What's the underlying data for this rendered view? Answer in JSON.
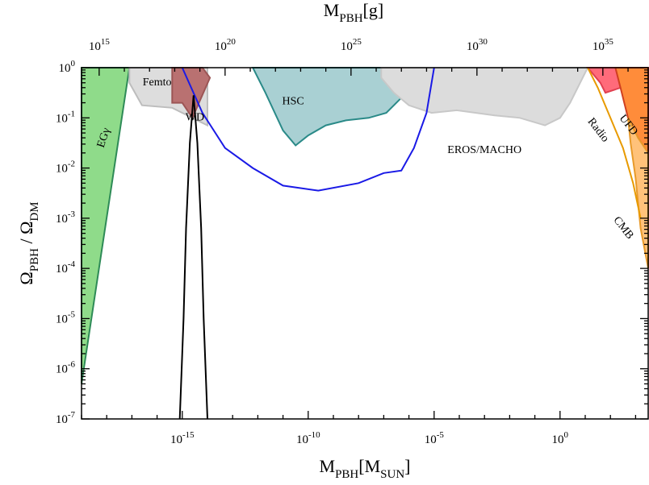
{
  "chart_data": {
    "type": "area",
    "title": "",
    "x_axis": {
      "label_main": "M",
      "label_sub": "PBH",
      "label_unit_open": "[M",
      "label_unit_sub": "SUN",
      "label_unit_close": "]",
      "scale": "log",
      "range_log10": [
        -19,
        3.5
      ],
      "ticks": [
        {
          "log10": -15,
          "base": "10",
          "exp": "-15"
        },
        {
          "log10": -10,
          "base": "10",
          "exp": "-10"
        },
        {
          "log10": -5,
          "base": "10",
          "exp": "-5"
        },
        {
          "log10": 0,
          "base": "10",
          "exp": "0"
        }
      ]
    },
    "x2_axis": {
      "label_main": "M",
      "label_sub": "PBH",
      "label_unit": "[g]",
      "scale": "log",
      "ticks": [
        {
          "log10": 15,
          "base": "10",
          "exp": "15"
        },
        {
          "log10": 20,
          "base": "10",
          "exp": "20"
        },
        {
          "log10": 25,
          "base": "10",
          "exp": "25"
        },
        {
          "log10": 30,
          "base": "10",
          "exp": "30"
        },
        {
          "log10": 35,
          "base": "10",
          "exp": "35"
        }
      ]
    },
    "y_axis": {
      "label_main": "Ω",
      "label_sub": "PBH",
      "label_sep": " / Ω",
      "label_sub2": "DM",
      "scale": "log",
      "range_log10": [
        -7,
        0
      ],
      "ticks": [
        {
          "log10": 0,
          "base": "10",
          "exp": "0"
        },
        {
          "log10": -1,
          "base": "10",
          "exp": "-1"
        },
        {
          "log10": -2,
          "base": "10",
          "exp": "-2"
        },
        {
          "log10": -3,
          "base": "10",
          "exp": "-3"
        },
        {
          "log10": -4,
          "base": "10",
          "exp": "-4"
        },
        {
          "log10": -5,
          "base": "10",
          "exp": "-5"
        },
        {
          "log10": -6,
          "base": "10",
          "exp": "-6"
        },
        {
          "log10": -7,
          "base": "10",
          "exp": "-7"
        }
      ]
    },
    "regions": [
      {
        "name": "EGγ",
        "fill": "#8fdb8a",
        "stroke": "#2e8b57",
        "points_log10": [
          [
            -19,
            0
          ],
          [
            -17.1,
            0
          ],
          [
            -19,
            -6.3
          ]
        ]
      },
      {
        "name": "Femto",
        "fill": "#dddddd",
        "stroke": "#bdbdbd",
        "points_log10": [
          [
            -17.1,
            0
          ],
          [
            -14,
            0
          ],
          [
            -14,
            -1.15
          ],
          [
            -15.4,
            -0.8
          ],
          [
            -16.6,
            -0.75
          ],
          [
            -17.1,
            -0.3
          ]
        ]
      },
      {
        "name": "WD",
        "fill": "#b97171",
        "stroke": "#9c5555",
        "points_log10": [
          [
            -15.4,
            0
          ],
          [
            -14.2,
            0
          ],
          [
            -13.9,
            -0.2
          ],
          [
            -14.6,
            -1.0
          ],
          [
            -15.0,
            -0.7
          ],
          [
            -15.4,
            -0.7
          ]
        ]
      },
      {
        "name": "HSC",
        "fill": "#a9d0d3",
        "stroke": "#2a8a88",
        "points_log10": [
          [
            -12.2,
            0
          ],
          [
            -6.0,
            0
          ],
          [
            -6.3,
            -0.6
          ],
          [
            -6.9,
            -0.9
          ],
          [
            -7.6,
            -1.0
          ],
          [
            -8.5,
            -1.05
          ],
          [
            -9.3,
            -1.15
          ],
          [
            -10.0,
            -1.35
          ],
          [
            -10.5,
            -1.55
          ],
          [
            -11.0,
            -1.25
          ],
          [
            -11.7,
            -0.5
          ]
        ]
      },
      {
        "name": "EROS/MACHO",
        "fill": "#dcdcdc",
        "stroke": "#c8c8c8",
        "points_log10": [
          [
            -7.1,
            0
          ],
          [
            1.1,
            0
          ],
          [
            0.4,
            -0.7
          ],
          [
            0,
            -1.0
          ],
          [
            -0.6,
            -1.15
          ],
          [
            -1.6,
            -1.0
          ],
          [
            -2.6,
            -0.95
          ],
          [
            -4.1,
            -0.85
          ],
          [
            -5.1,
            -0.9
          ],
          [
            -6.0,
            -0.75
          ],
          [
            -6.6,
            -0.5
          ],
          [
            -7.1,
            -0.2
          ]
        ]
      },
      {
        "name": "Radio",
        "fill": "#ff6b7a",
        "stroke": "#e04050",
        "points_log10": [
          [
            1.1,
            0
          ],
          [
            2.2,
            0
          ],
          [
            2.4,
            -0.4
          ],
          [
            1.8,
            -0.5
          ],
          [
            1.6,
            -0.3
          ]
        ]
      },
      {
        "name": "UFD",
        "fill": "#ff8c3a",
        "stroke": "#d04020",
        "points_log10": [
          [
            2.2,
            0
          ],
          [
            3.5,
            0
          ],
          [
            3.5,
            -1.7
          ],
          [
            3.1,
            -1.4
          ],
          [
            2.7,
            -1.0
          ],
          [
            2.4,
            -0.4
          ]
        ]
      },
      {
        "name": "CMB",
        "fill": "#ffc27a",
        "stroke": "#e89a2a",
        "points_log10": [
          [
            2.7,
            -1.0
          ],
          [
            3.1,
            -1.4
          ],
          [
            3.5,
            -1.7
          ],
          [
            3.5,
            -4.0
          ],
          [
            3.2,
            -3.2
          ],
          [
            3.0,
            -2.2
          ],
          [
            2.8,
            -1.5
          ]
        ]
      }
    ],
    "lines": [
      {
        "name": "projected-bound",
        "color": "#1a1ae6",
        "points_log10": [
          [
            -15.0,
            0
          ],
          [
            -14.2,
            -0.9
          ],
          [
            -13.3,
            -1.6
          ],
          [
            -12.2,
            -2.0
          ],
          [
            -11.0,
            -2.35
          ],
          [
            -9.6,
            -2.45
          ],
          [
            -8.0,
            -2.3
          ],
          [
            -7.0,
            -2.1
          ],
          [
            -6.3,
            -2.05
          ],
          [
            -5.8,
            -1.6
          ],
          [
            -5.3,
            -0.9
          ],
          [
            -5.0,
            0
          ]
        ]
      },
      {
        "name": "radio-bound",
        "color": "#e89a00",
        "points_log10": [
          [
            1.1,
            0
          ],
          [
            1.5,
            -0.4
          ],
          [
            2.0,
            -1.0
          ],
          [
            2.5,
            -1.6
          ],
          [
            2.9,
            -2.3
          ],
          [
            3.2,
            -3.0
          ]
        ]
      },
      {
        "name": "mass-function-peak",
        "color": "#000000",
        "points_log10": [
          [
            -15.1,
            -7.0
          ],
          [
            -14.95,
            -5.0
          ],
          [
            -14.85,
            -3.2
          ],
          [
            -14.7,
            -1.5
          ],
          [
            -14.55,
            -0.55
          ],
          [
            -14.4,
            -1.5
          ],
          [
            -14.25,
            -3.2
          ],
          [
            -14.15,
            -5.0
          ],
          [
            -14.0,
            -7.0
          ]
        ]
      }
    ],
    "labels": [
      {
        "text": "Femto",
        "at_log10": [
          -16.0,
          -0.3
        ],
        "rotate": 0
      },
      {
        "text": "WD",
        "at_log10": [
          -14.5,
          -1.0
        ],
        "rotate": 0
      },
      {
        "text": "HSC",
        "at_log10": [
          -10.6,
          -0.68
        ],
        "rotate": 0
      },
      {
        "text": "EROS/MACHO",
        "at_log10": [
          -3.0,
          -1.65
        ],
        "rotate": 0
      },
      {
        "text": "Radio",
        "at_log10": [
          1.5,
          -1.25
        ],
        "rotate": 52
      },
      {
        "text": "UFD",
        "at_log10": [
          2.7,
          -1.15
        ],
        "rotate": 52
      },
      {
        "text": "CMB",
        "at_log10": [
          2.5,
          -3.2
        ],
        "rotate": 52
      },
      {
        "text": "EGγ",
        "at_log10": [
          -18.1,
          -1.4
        ],
        "rotate": -72
      }
    ],
    "grid": false,
    "legend": "none"
  }
}
